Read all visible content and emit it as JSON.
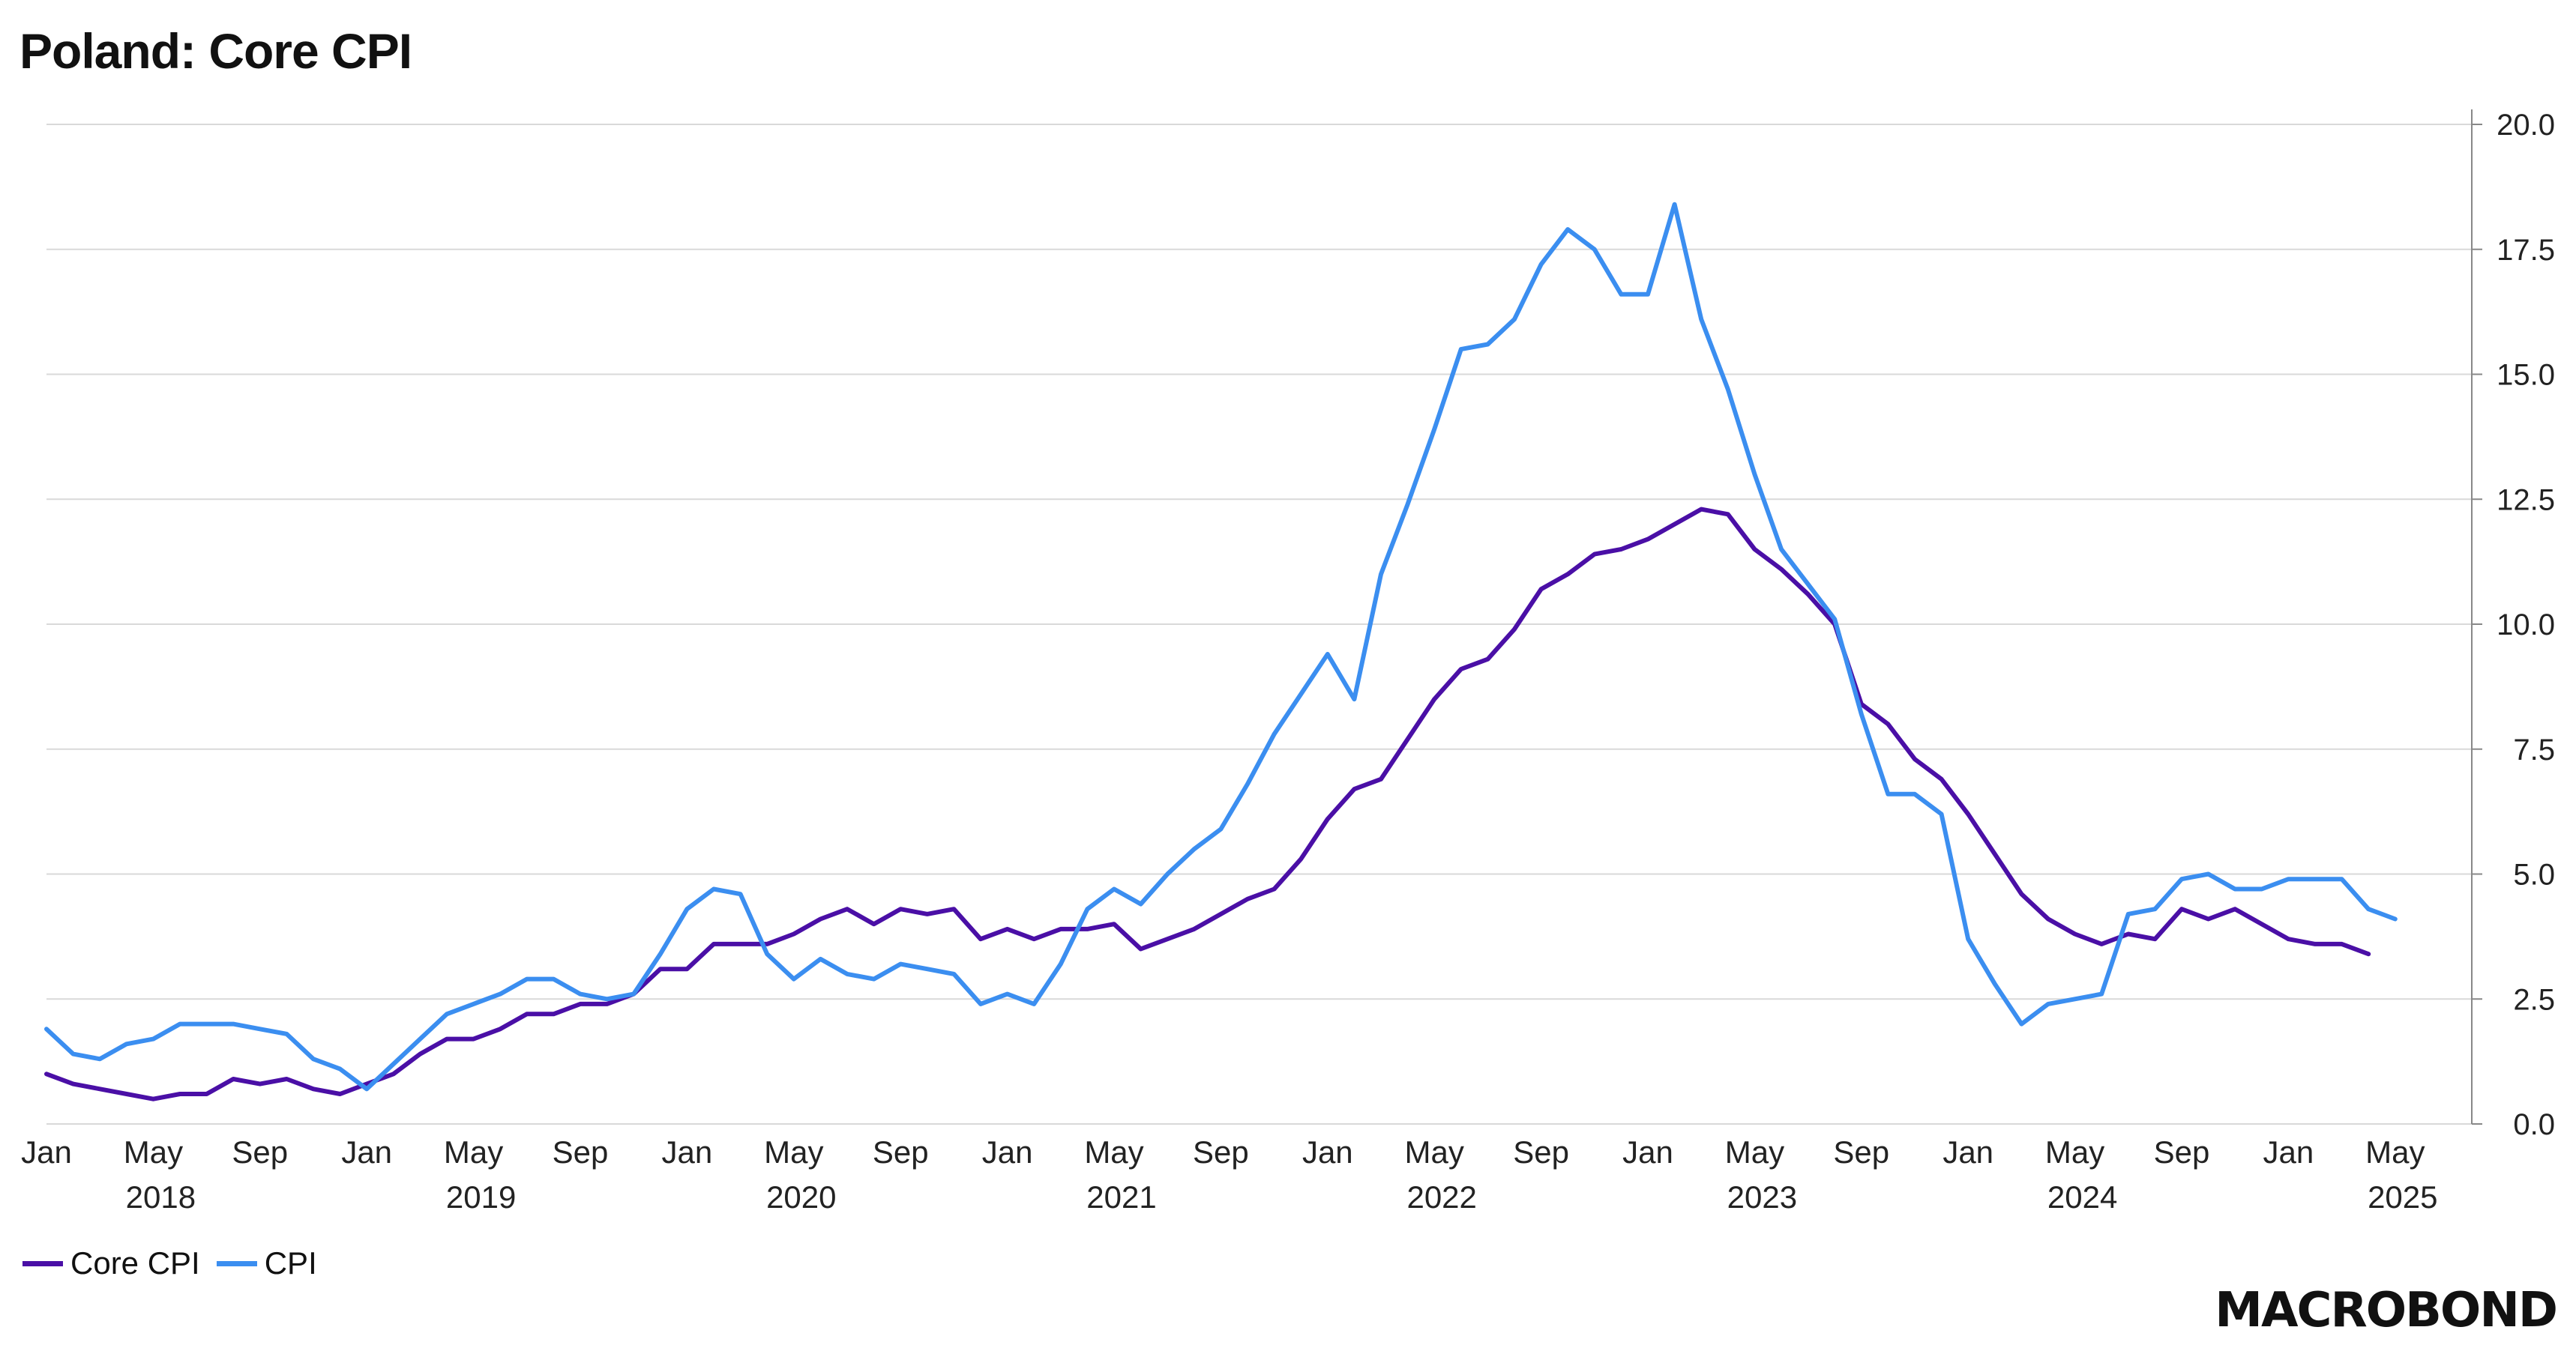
{
  "title": "Poland: Core CPI",
  "brand": "MACROBOND",
  "legend": [
    {
      "name": "Core CPI",
      "color": "#4a0fa6"
    },
    {
      "name": "CPI",
      "color": "#3b8ef0"
    }
  ],
  "chart_data": {
    "type": "line",
    "start": "2018-01",
    "ylim": [
      0,
      20
    ],
    "yticks": [
      "0.0",
      "2.5",
      "5.0",
      "7.5",
      "10.0",
      "12.5",
      "15.0",
      "17.5",
      "20.0"
    ],
    "month_labels": [
      "Jan",
      "May",
      "Sep"
    ],
    "year_labels": [
      "2018",
      "2019",
      "2020",
      "2021",
      "2022",
      "2023",
      "2024",
      "2025"
    ],
    "grid": true,
    "legend_position": "bottom-left",
    "series": [
      {
        "name": "Core CPI",
        "color": "#4a0fa6",
        "values": [
          1.0,
          0.8,
          0.7,
          0.6,
          0.5,
          0.6,
          0.6,
          0.9,
          0.8,
          0.9,
          0.7,
          0.6,
          0.8,
          1.0,
          1.4,
          1.7,
          1.7,
          1.9,
          2.2,
          2.2,
          2.4,
          2.4,
          2.6,
          3.1,
          3.1,
          3.6,
          3.6,
          3.6,
          3.8,
          4.1,
          4.3,
          4.0,
          4.3,
          4.2,
          4.3,
          3.7,
          3.9,
          3.7,
          3.9,
          3.9,
          4.0,
          3.5,
          3.7,
          3.9,
          4.2,
          4.5,
          4.7,
          5.3,
          6.1,
          6.7,
          6.9,
          7.7,
          8.5,
          9.1,
          9.3,
          9.9,
          10.7,
          11.0,
          11.4,
          11.5,
          11.7,
          12.0,
          12.3,
          12.2,
          11.5,
          11.1,
          10.6,
          10.0,
          8.4,
          8.0,
          7.3,
          6.9,
          6.2,
          5.4,
          4.6,
          4.1,
          3.8,
          3.6,
          3.8,
          3.7,
          4.3,
          4.1,
          4.3,
          4.0,
          3.7,
          3.6,
          3.6,
          3.4
        ]
      },
      {
        "name": "CPI",
        "color": "#3b8ef0",
        "values": [
          1.9,
          1.4,
          1.3,
          1.6,
          1.7,
          2.0,
          2.0,
          2.0,
          1.9,
          1.8,
          1.3,
          1.1,
          0.7,
          1.2,
          1.7,
          2.2,
          2.4,
          2.6,
          2.9,
          2.9,
          2.6,
          2.5,
          2.6,
          3.4,
          4.3,
          4.7,
          4.6,
          3.4,
          2.9,
          3.3,
          3.0,
          2.9,
          3.2,
          3.1,
          3.0,
          2.4,
          2.6,
          2.4,
          3.2,
          4.3,
          4.7,
          4.4,
          5.0,
          5.5,
          5.9,
          6.8,
          7.8,
          8.6,
          9.4,
          8.5,
          11.0,
          12.4,
          13.9,
          15.5,
          15.6,
          16.1,
          17.2,
          17.9,
          17.5,
          16.6,
          16.6,
          18.4,
          16.1,
          14.7,
          13.0,
          11.5,
          10.8,
          10.1,
          8.2,
          6.6,
          6.6,
          6.2,
          3.7,
          2.8,
          2.0,
          2.4,
          2.5,
          2.6,
          4.2,
          4.3,
          4.9,
          5.0,
          4.7,
          4.7,
          4.9,
          4.9,
          4.9,
          4.3,
          4.1
        ]
      }
    ]
  }
}
